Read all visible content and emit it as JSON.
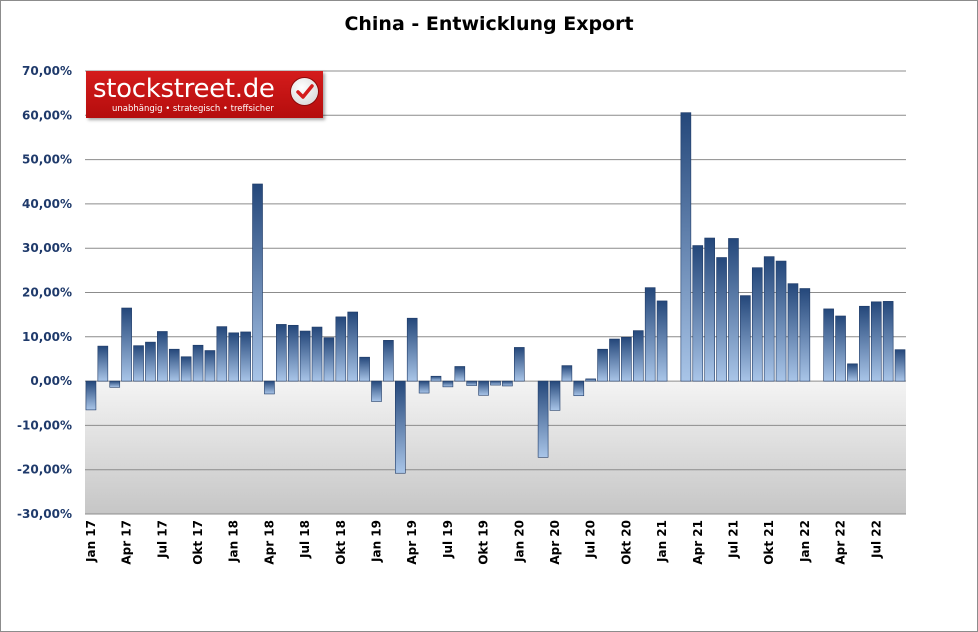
{
  "chart_data": {
    "type": "bar",
    "title": "China - Entwicklung Export",
    "xlabel": "",
    "ylabel": "",
    "ylim": [
      -30,
      70
    ],
    "yticks": [
      "70,00%",
      "60,00%",
      "50,00%",
      "40,00%",
      "30,00%",
      "20,00%",
      "10,00%",
      "0,00%",
      "-10,00%",
      "-20,00%",
      "-30,00%"
    ],
    "grid": true,
    "bar_color": "#2f558a",
    "categories": [
      "Jan 17",
      "Feb 17",
      "Mar 17",
      "Apr 17",
      "May 17",
      "Jun 17",
      "Jul 17",
      "Aug 17",
      "Sep 17",
      "Okt 17",
      "Nov 17",
      "Dec 17",
      "Jan 18",
      "Feb 18",
      "Mar 18",
      "Apr 18",
      "May 18",
      "Jun 18",
      "Jul 18",
      "Aug 18",
      "Sep 18",
      "Okt 18",
      "Nov 18",
      "Dec 18",
      "Jan 19",
      "Feb 19",
      "Mar 19",
      "Apr 19",
      "May 19",
      "Jun 19",
      "Jul 19",
      "Aug 19",
      "Sep 19",
      "Okt 19",
      "Nov 19",
      "Dec 19",
      "Jan 20",
      "Feb 20",
      "Mar 20",
      "Apr 20",
      "May 20",
      "Jun 20",
      "Jul 20",
      "Aug 20",
      "Sep 20",
      "Okt 20",
      "Nov 20",
      "Dec 20",
      "Jan 21",
      "Feb 21",
      "Mar 21",
      "Apr 21",
      "May 21",
      "Jun 21",
      "Jul 21",
      "Aug 21",
      "Sep 21",
      "Okt 21",
      "Nov 21",
      "Dec 21",
      "Jan 22",
      "Feb 22",
      "Mar 22",
      "Apr 22",
      "May 22",
      "Jun 22",
      "Jul 22",
      "Aug 22",
      "Sep 22"
    ],
    "values": [
      -6.5,
      7.9,
      -1.4,
      16.5,
      8.0,
      8.8,
      11.2,
      7.2,
      5.5,
      8.1,
      6.9,
      12.3,
      10.9,
      11.1,
      44.5,
      -2.9,
      12.8,
      12.6,
      11.3,
      12.2,
      9.8,
      14.5,
      15.6,
      5.4,
      -4.6,
      9.2,
      -20.8,
      14.2,
      -2.7,
      1.1,
      -1.3,
      3.3,
      -1.0,
      -3.2,
      -0.9,
      -1.1,
      7.6,
      0,
      -17.2,
      -6.6,
      3.5,
      -3.3,
      0.5,
      7.2,
      9.5,
      9.9,
      11.4,
      21.1,
      18.1,
      0,
      60.6,
      30.6,
      32.3,
      27.9,
      32.2,
      19.3,
      25.6,
      28.1,
      27.1,
      22.0,
      20.9,
      0,
      16.3,
      14.7,
      3.9,
      16.9,
      17.9,
      18.0,
      7.1
    ],
    "x_tick_labels": [
      {
        "index": 0,
        "label": "Jan 17"
      },
      {
        "index": 3,
        "label": "Apr 17"
      },
      {
        "index": 6,
        "label": "Jul 17"
      },
      {
        "index": 9,
        "label": "Okt 17"
      },
      {
        "index": 12,
        "label": "Jan 18"
      },
      {
        "index": 15,
        "label": "Apr 18"
      },
      {
        "index": 18,
        "label": "Jul 18"
      },
      {
        "index": 21,
        "label": "Okt 18"
      },
      {
        "index": 24,
        "label": "Jan 19"
      },
      {
        "index": 27,
        "label": "Apr 19"
      },
      {
        "index": 30,
        "label": "Jul 19"
      },
      {
        "index": 33,
        "label": "Okt 19"
      },
      {
        "index": 36,
        "label": "Jan 20"
      },
      {
        "index": 39,
        "label": "Apr 20"
      },
      {
        "index": 42,
        "label": "Jul 20"
      },
      {
        "index": 45,
        "label": "Okt 20"
      },
      {
        "index": 48,
        "label": "Jan 21"
      },
      {
        "index": 51,
        "label": "Apr 21"
      },
      {
        "index": 54,
        "label": "Jul 21"
      },
      {
        "index": 57,
        "label": "Okt 21"
      },
      {
        "index": 60,
        "label": "Jan 22"
      },
      {
        "index": 63,
        "label": "Apr 22"
      },
      {
        "index": 66,
        "label": "Jul 22"
      }
    ]
  },
  "logo": {
    "main": "stockstreet.de",
    "tagline": "unabhängig • strategisch • treffsicher"
  }
}
